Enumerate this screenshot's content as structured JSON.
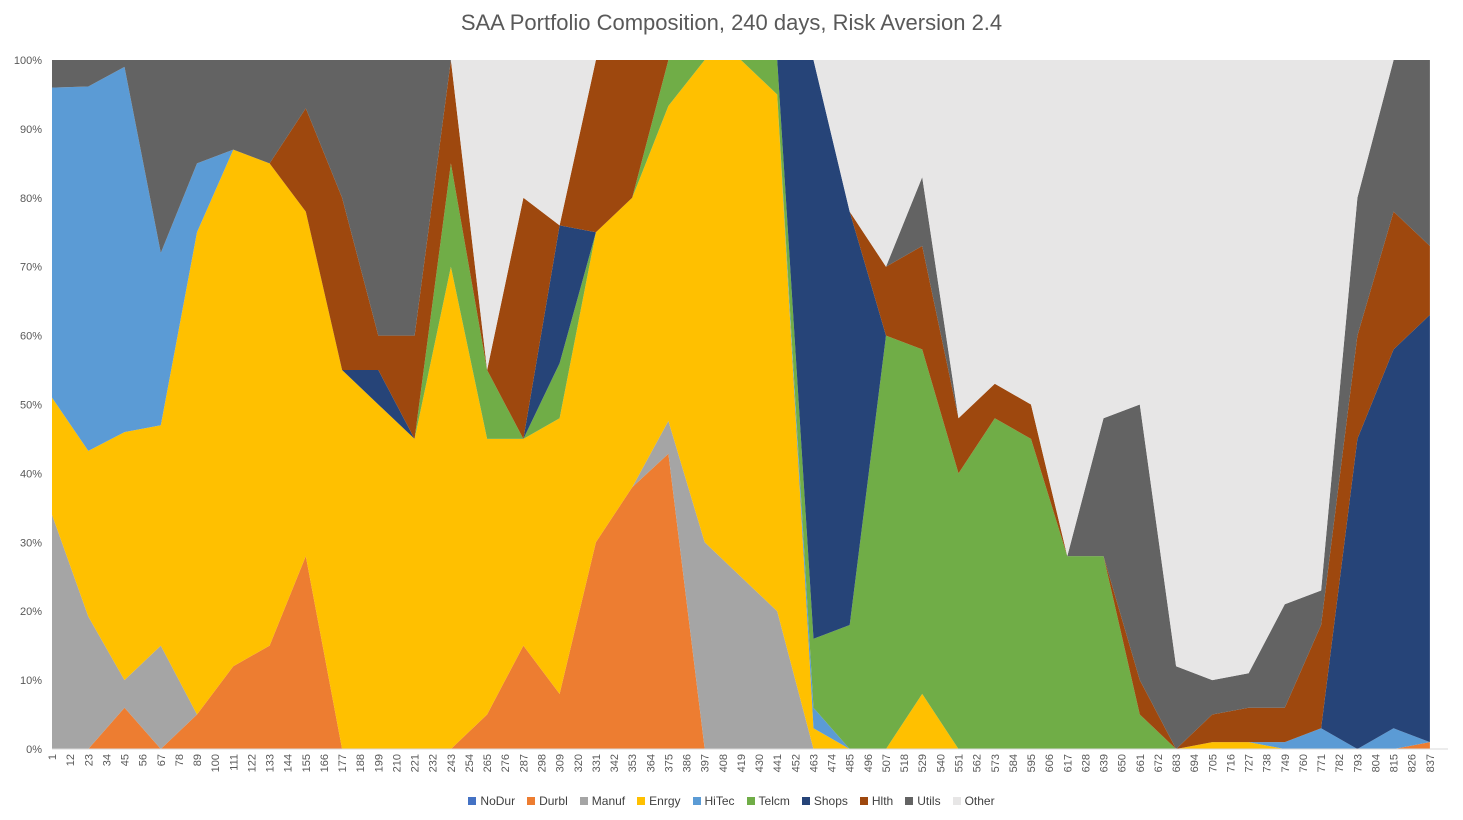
{
  "chart_data": {
    "type": "area",
    "stacked": true,
    "percent": true,
    "title": "SAA Portfolio Composition, 240 days, Risk Aversion 2.4",
    "xlabel": "",
    "ylabel": "",
    "ylim": [
      0,
      100
    ],
    "yticks": [
      "0%",
      "10%",
      "20%",
      "30%",
      "40%",
      "50%",
      "60%",
      "70%",
      "80%",
      "90%",
      "100%"
    ],
    "x": [
      1,
      23,
      45,
      67,
      89,
      111,
      133,
      155,
      177,
      199,
      221,
      243,
      265,
      287,
      309,
      331,
      353,
      375,
      397,
      419,
      441,
      463,
      485,
      507,
      529,
      551,
      573,
      595,
      617,
      639,
      661,
      683,
      705,
      727,
      749,
      771,
      793,
      815,
      837
    ],
    "xtick_labels": [
      "1",
      "12",
      "23",
      "34",
      "45",
      "56",
      "67",
      "78",
      "89",
      "100",
      "111",
      "122",
      "133",
      "144",
      "155",
      "166",
      "177",
      "188",
      "199",
      "210",
      "221",
      "232",
      "243",
      "254",
      "265",
      "276",
      "287",
      "298",
      "309",
      "320",
      "331",
      "342",
      "353",
      "364",
      "375",
      "386",
      "397",
      "408",
      "419",
      "430",
      "441",
      "452",
      "463",
      "474",
      "485",
      "496",
      "507",
      "518",
      "529",
      "540",
      "551",
      "562",
      "573",
      "584",
      "595",
      "606",
      "617",
      "628",
      "639",
      "650",
      "661",
      "672",
      "683",
      "694",
      "705",
      "716",
      "727",
      "738",
      "749",
      "760",
      "771",
      "782",
      "793",
      "804",
      "815",
      "826",
      "837"
    ],
    "series": [
      {
        "name": "NoDur",
        "color": "#4472c4",
        "values": [
          0,
          0,
          0,
          0,
          0,
          0,
          0,
          0,
          0,
          0,
          0,
          0,
          0,
          0,
          0,
          0,
          0,
          0,
          0,
          0,
          0,
          0,
          0,
          0,
          0,
          0,
          0,
          0,
          0,
          0,
          0,
          0,
          0,
          0,
          0,
          0,
          0,
          0,
          0
        ]
      },
      {
        "name": "Durbl",
        "color": "#ed7d31",
        "values": [
          0,
          0,
          6,
          0,
          5,
          12,
          15,
          28,
          0,
          0,
          0,
          0,
          5,
          15,
          8,
          30,
          38,
          45,
          0,
          0,
          0,
          0,
          0,
          0,
          0,
          0,
          0,
          0,
          0,
          0,
          0,
          0,
          0,
          0,
          0,
          0,
          0,
          0,
          1
        ]
      },
      {
        "name": "Manuf",
        "color": "#a5a5a5",
        "values": [
          34,
          20,
          4,
          15,
          0,
          0,
          0,
          0,
          0,
          0,
          0,
          0,
          0,
          0,
          0,
          0,
          0,
          5,
          30,
          25,
          20,
          0,
          0,
          0,
          0,
          0,
          0,
          0,
          0,
          0,
          0,
          0,
          0,
          0,
          0,
          0,
          0,
          0,
          0
        ]
      },
      {
        "name": "Enrgy",
        "color": "#ffc000",
        "values": [
          17,
          25,
          36,
          32,
          70,
          75,
          70,
          50,
          55,
          50,
          45,
          70,
          40,
          30,
          40,
          45,
          42,
          48,
          70,
          75,
          75,
          3,
          0,
          0,
          8,
          0,
          0,
          0,
          0,
          0,
          0,
          0,
          1,
          1,
          0,
          0,
          0,
          0,
          0
        ]
      },
      {
        "name": "HiTec",
        "color": "#5b9bd5",
        "values": [
          45,
          55,
          53,
          25,
          10,
          0,
          0,
          0,
          0,
          0,
          0,
          0,
          0,
          0,
          0,
          0,
          0,
          0,
          0,
          0,
          0,
          3,
          0,
          0,
          0,
          0,
          0,
          0,
          0,
          0,
          0,
          0,
          0,
          0,
          1,
          3,
          0,
          3,
          0
        ]
      },
      {
        "name": "Telcm",
        "color": "#70ad47",
        "values": [
          0,
          0,
          0,
          0,
          0,
          0,
          0,
          0,
          0,
          0,
          0,
          15,
          10,
          0,
          8,
          0,
          0,
          7,
          0,
          0,
          5,
          10,
          18,
          60,
          50,
          40,
          48,
          45,
          28,
          28,
          5,
          0,
          0,
          0,
          0,
          0,
          0,
          0,
          0
        ]
      },
      {
        "name": "Shops",
        "color": "#264478",
        "values": [
          0,
          0,
          0,
          0,
          0,
          0,
          0,
          0,
          0,
          5,
          0,
          0,
          0,
          0,
          20,
          0,
          0,
          0,
          0,
          0,
          0,
          84,
          60,
          0,
          0,
          0,
          0,
          0,
          0,
          0,
          0,
          0,
          0,
          0,
          0,
          0,
          45,
          55,
          62
        ]
      },
      {
        "name": "Hlth",
        "color": "#9e480e",
        "values": [
          0,
          0,
          0,
          0,
          0,
          0,
          0,
          15,
          25,
          5,
          15,
          15,
          0,
          35,
          0,
          25,
          20,
          0,
          0,
          0,
          0,
          0,
          0,
          10,
          15,
          8,
          5,
          5,
          0,
          0,
          5,
          0,
          4,
          5,
          5,
          15,
          15,
          20,
          10
        ]
      },
      {
        "name": "Utils",
        "color": "#636363",
        "values": [
          4,
          4,
          1,
          28,
          15,
          13,
          15,
          7,
          20,
          40,
          40,
          0,
          0,
          0,
          0,
          0,
          0,
          0,
          0,
          0,
          0,
          0,
          0,
          0,
          10,
          0,
          0,
          0,
          0,
          20,
          40,
          12,
          5,
          5,
          15,
          5,
          20,
          22,
          27
        ]
      },
      {
        "name": "Other",
        "color": "#e7e6e6",
        "values": [
          0,
          0,
          0,
          0,
          0,
          0,
          0,
          0,
          0,
          0,
          0,
          0,
          45,
          20,
          24,
          0,
          0,
          0,
          0,
          0,
          0,
          0,
          22,
          30,
          17,
          52,
          47,
          50,
          72,
          52,
          50,
          88,
          90,
          89,
          79,
          77,
          20,
          0,
          0
        ]
      }
    ],
    "legend_position": "bottom",
    "grid": false
  }
}
